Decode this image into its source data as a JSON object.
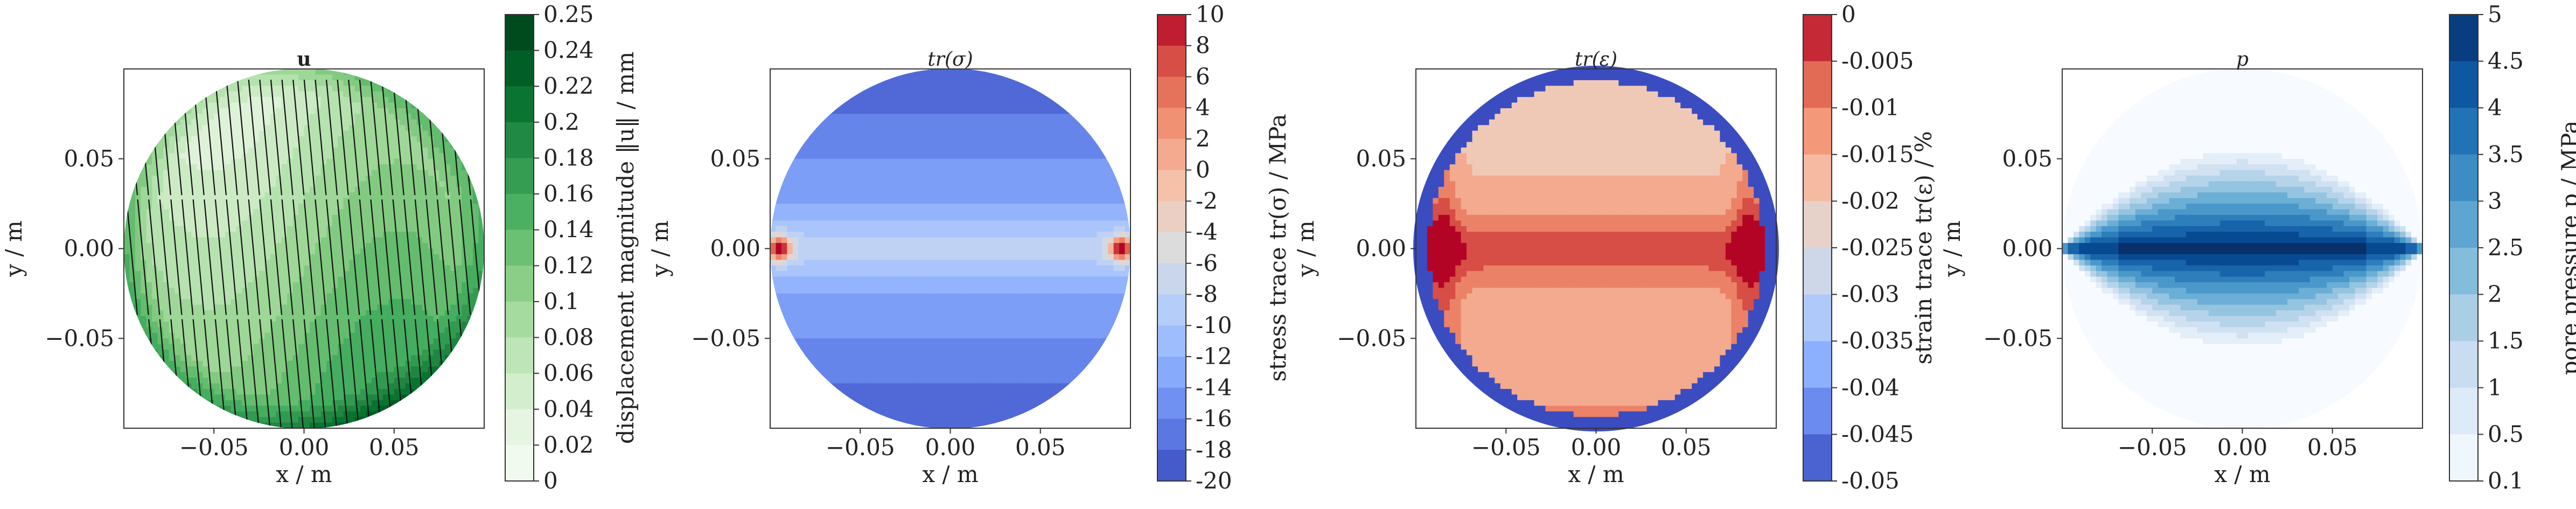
{
  "figure": {
    "panel_count": 4
  },
  "chart_data": [
    {
      "type": "heatmap",
      "title": "u",
      "xlabel": "x / m",
      "ylabel": "y / m",
      "xticks": [
        "−0.05",
        "0.00",
        "0.05"
      ],
      "xtick_values": [
        -0.05,
        0.0,
        0.05
      ],
      "yticks": [
        "0.05",
        "0.00",
        "−0.05"
      ],
      "ytick_values": [
        0.05,
        0.0,
        -0.05
      ],
      "xlim": [
        -0.1,
        0.1
      ],
      "ylim": [
        -0.1,
        0.1
      ],
      "colorbar": {
        "label": "displacement magnitude ‖u‖ / mm",
        "ticks": [
          "0.25",
          "0.24",
          "0.22",
          "0.2",
          "0.18",
          "0.16",
          "0.14",
          "0.12",
          "0.1",
          "0.08",
          "0.06",
          "0.04",
          "0.02",
          "0"
        ],
        "tick_values": [
          0.25,
          0.24,
          0.22,
          0.2,
          0.18,
          0.16,
          0.14,
          0.12,
          0.1,
          0.08,
          0.06,
          0.04,
          0.02,
          0
        ],
        "vmin": 0,
        "vmax": 0.25,
        "colors": [
          "#f7fcf5",
          "#e5f5e0",
          "#c7e9c0",
          "#a1d99b",
          "#74c476",
          "#41ab5d",
          "#238b45",
          "#006d2c",
          "#00441b"
        ]
      },
      "colormap": "Greens",
      "has_quiver": true
    },
    {
      "type": "heatmap",
      "title": "tr(σ)",
      "xlabel": "x / m",
      "ylabel": "y / m",
      "xticks": [
        "−0.05",
        "0.00",
        "0.05"
      ],
      "xtick_values": [
        -0.05,
        0.0,
        0.05
      ],
      "yticks": [
        "0.05",
        "0.00",
        "−0.05"
      ],
      "ytick_values": [
        0.05,
        0.0,
        -0.05
      ],
      "xlim": [
        -0.1,
        0.1
      ],
      "ylim": [
        -0.1,
        0.1
      ],
      "colorbar": {
        "label": "stress trace tr(σ) / MPa",
        "ticks": [
          "10",
          "8",
          "6",
          "4",
          "2",
          "0",
          "-2",
          "-4",
          "-6",
          "-8",
          "-10",
          "-12",
          "-14",
          "-16",
          "-18",
          "-20"
        ],
        "tick_values": [
          10,
          8,
          6,
          4,
          2,
          0,
          -2,
          -4,
          -6,
          -8,
          -10,
          -12,
          -14,
          -16,
          -18,
          -20
        ],
        "vmin": -20,
        "vmax": 10,
        "colors": [
          "#3b4cc0",
          "#6282ea",
          "#8db0fe",
          "#b8d0f9",
          "#dddcdc",
          "#f5c4ac",
          "#f4987a",
          "#de604d",
          "#b40426"
        ]
      },
      "colormap": "coolwarm"
    },
    {
      "type": "heatmap",
      "title": "tr(ε)",
      "xlabel": "x / m",
      "ylabel": "y / m",
      "xticks": [
        "−0.05",
        "0.00",
        "0.05"
      ],
      "xtick_values": [
        -0.05,
        0.0,
        0.05
      ],
      "yticks": [
        "0.05",
        "0.00",
        "−0.05"
      ],
      "ytick_values": [
        0.05,
        0.0,
        -0.05
      ],
      "xlim": [
        -0.1,
        0.1
      ],
      "ylim": [
        -0.1,
        0.1
      ],
      "colorbar": {
        "label": "strain trace tr(ε) / %",
        "ticks": [
          "0",
          "-0.005",
          "-0.01",
          "-0.015",
          "-0.02",
          "-0.025",
          "-0.03",
          "-0.035",
          "-0.04",
          "-0.045",
          "-0.05"
        ],
        "tick_values": [
          0,
          -0.005,
          -0.01,
          -0.015,
          -0.02,
          -0.025,
          -0.03,
          -0.035,
          -0.04,
          -0.045,
          -0.05
        ],
        "vmin": -0.05,
        "vmax": 0,
        "colors": [
          "#3b4cc0",
          "#6282ea",
          "#8db0fe",
          "#b8d0f9",
          "#dddcdc",
          "#f5c4ac",
          "#f4987a",
          "#de604d",
          "#b40426"
        ]
      },
      "colormap": "coolwarm"
    },
    {
      "type": "heatmap",
      "title": "p",
      "xlabel": "x / m",
      "ylabel": "y / m",
      "xticks": [
        "−0.05",
        "0.00",
        "0.05"
      ],
      "xtick_values": [
        -0.05,
        0.0,
        0.05
      ],
      "yticks": [
        "0.05",
        "0.00",
        "−0.05"
      ],
      "ytick_values": [
        0.05,
        0.0,
        -0.05
      ],
      "xlim": [
        -0.1,
        0.1
      ],
      "ylim": [
        -0.1,
        0.1
      ],
      "colorbar": {
        "label": "pore pressure p / MPa",
        "ticks": [
          "5",
          "4.5",
          "4",
          "3.5",
          "3",
          "2.5",
          "2",
          "1.5",
          "1",
          "0.5",
          "0.1"
        ],
        "tick_values": [
          5,
          4.5,
          4,
          3.5,
          3,
          2.5,
          2,
          1.5,
          1,
          0.5,
          0.1
        ],
        "vmin": 0.1,
        "vmax": 5,
        "colors": [
          "#f7fbff",
          "#deebf7",
          "#c6dbef",
          "#9ecae1",
          "#6baed6",
          "#4292c6",
          "#2171b5",
          "#08519c",
          "#08306b"
        ]
      },
      "colormap": "Blues"
    }
  ]
}
